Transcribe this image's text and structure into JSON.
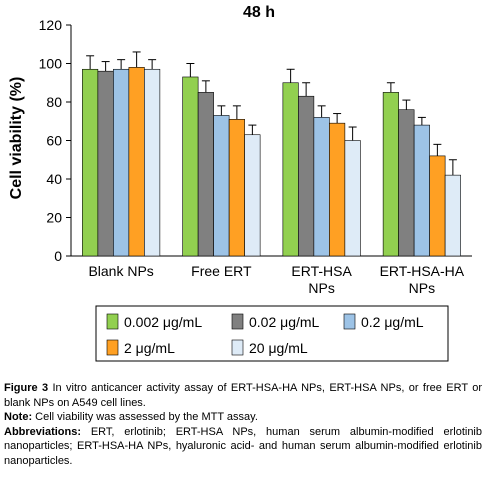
{
  "chart_data": {
    "type": "bar",
    "title": "48 h",
    "xlabel": "",
    "ylabel": "Cell viability (%)",
    "ylim": [
      0,
      120
    ],
    "yticks": [
      0,
      20,
      40,
      60,
      80,
      100,
      120
    ],
    "grid": false,
    "legend_position": "bottom",
    "categories": [
      "Blank NPs",
      "Free ERT",
      "ERT-HSA NPs",
      "ERT-HSA-HA NPs"
    ],
    "category_lines": [
      [
        "Blank NPs"
      ],
      [
        "Free ERT"
      ],
      [
        "ERT-HSA",
        "NPs"
      ],
      [
        "ERT-HSA-HA",
        "NPs"
      ]
    ],
    "series": [
      {
        "name": "0.002 μg/mL",
        "color": "#92d050",
        "values": [
          97,
          93,
          90,
          85
        ],
        "errors": [
          7,
          7,
          7,
          5
        ]
      },
      {
        "name": "0.02 μg/mL",
        "color": "#808080",
        "values": [
          96,
          85,
          83,
          76
        ],
        "errors": [
          5,
          6,
          7,
          5
        ]
      },
      {
        "name": "0.2 μg/mL",
        "color": "#9dc3e6",
        "values": [
          97,
          73,
          72,
          68
        ],
        "errors": [
          5,
          5,
          6,
          4
        ]
      },
      {
        "name": "2 μg/mL",
        "color": "#ffa023",
        "values": [
          98,
          71,
          69,
          52
        ],
        "errors": [
          8,
          7,
          5,
          6
        ]
      },
      {
        "name": "20 μg/mL",
        "color": "#deebf7",
        "values": [
          97,
          63,
          60,
          42
        ],
        "errors": [
          5,
          5,
          7,
          8
        ]
      }
    ]
  },
  "caption": {
    "fig_label": "Figure 3",
    "fig_text": "In vitro anticancer activity assay of ERT-HSA-HA NPs, ERT-HSA NPs, or free ERT or blank NPs on A549 cell lines.",
    "note_label": "Note:",
    "note_text": "Cell viability was assessed by the MTT assay.",
    "abbr_label": "Abbreviations:",
    "abbr_text": "ERT, erlotinib; ERT-HSA NPs, human serum albumin-modified erlotinib nanoparticles; ERT-HSA-HA NPs, hyaluronic acid- and human serum albumin-modified erlotinib nanoparticles."
  }
}
